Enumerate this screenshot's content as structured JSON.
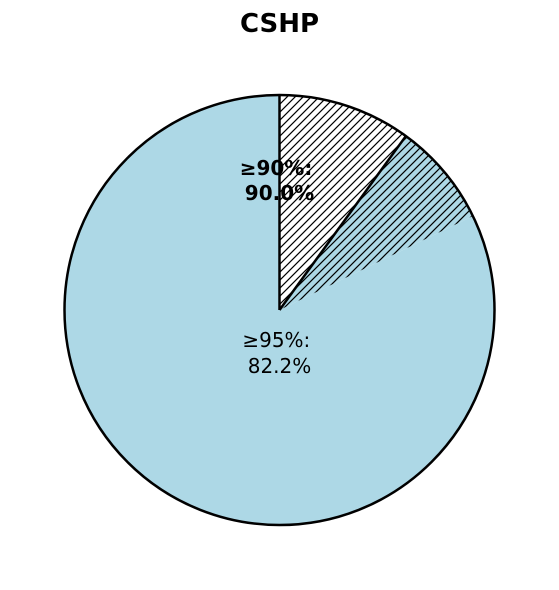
{
  "chart_data": {
    "type": "pie",
    "title": "CSHP",
    "start_angle_deg": 90,
    "direction": "counterclockwise",
    "slices": [
      {
        "name": "",
        "value": 82.2,
        "color": "#add8e6",
        "hatch": "none"
      },
      {
        "name": "",
        "value": 7.8,
        "color": "#add8e6",
        "hatch": "diagonal"
      },
      {
        "name": "",
        "value": 10.0,
        "color": "#ffffff",
        "hatch": "diagonal"
      }
    ],
    "annotations": [
      {
        "line1": "≥95%:",
        "line2": "82.2%",
        "weight": "normal"
      },
      {
        "line1": "≥90%:",
        "line2": "90.0%",
        "weight": "bold"
      }
    ]
  }
}
